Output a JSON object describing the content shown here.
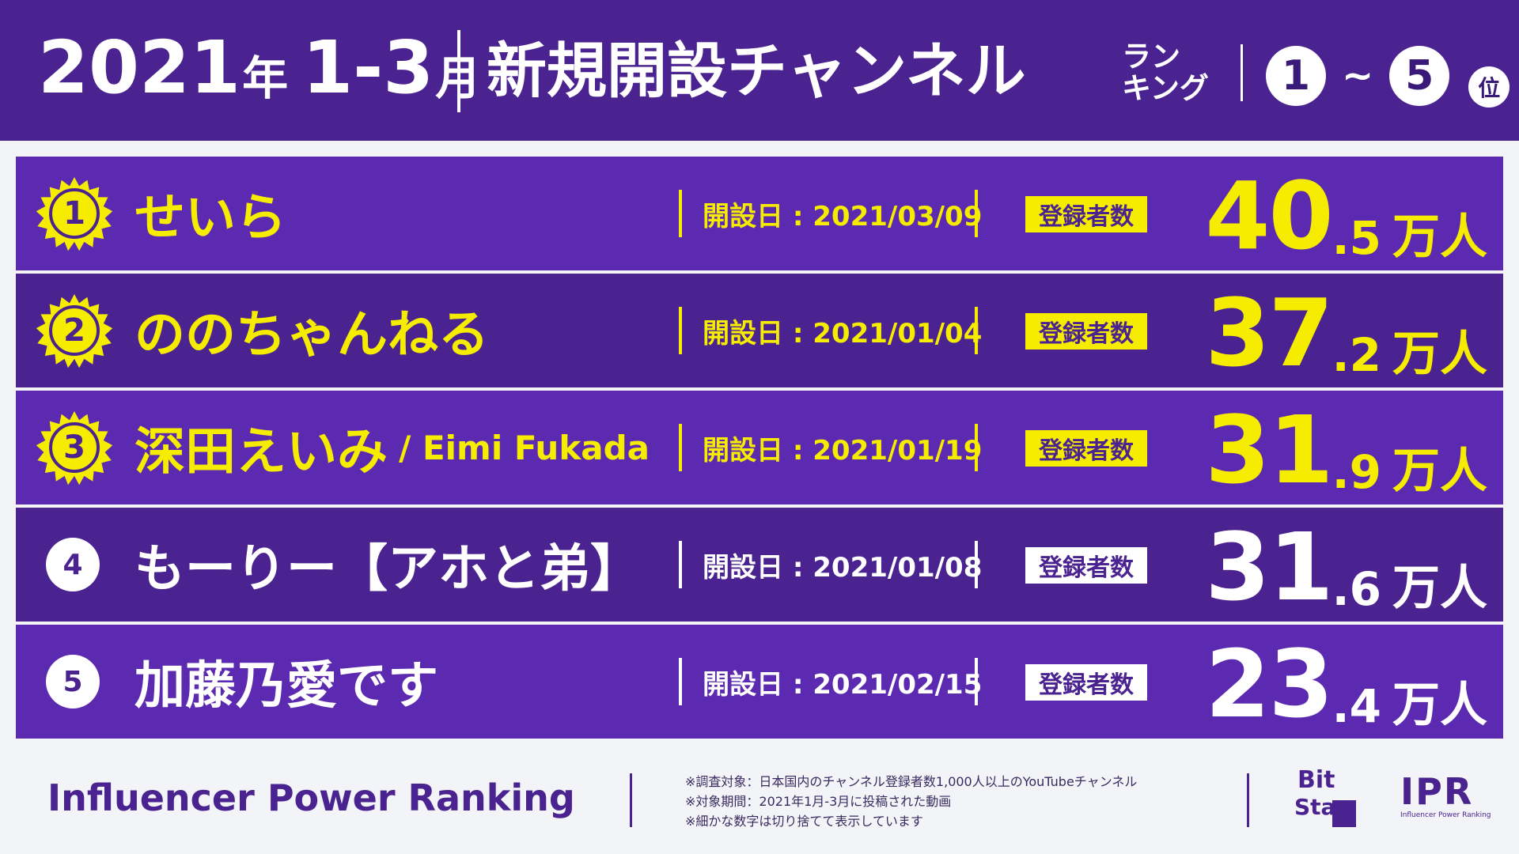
{
  "header": {
    "year": "2021",
    "year_suffix": "年",
    "months": "1-3",
    "month_suffix": "月",
    "title": "新規開設チャンネル",
    "subtitle_line1": "ラン",
    "subtitle_line2": "キング",
    "range_start": "1",
    "range_tilde": "~",
    "range_end": "5",
    "range_suffix": "位"
  },
  "rows": [
    {
      "rank": "1",
      "name": "せいら",
      "name_en": "",
      "date": "開設日 : 2021/03/09",
      "subs_label": "登録者数",
      "subs_int": "40",
      "subs_dec": ".5",
      "unit": "万人"
    },
    {
      "rank": "2",
      "name": "ののちゃんねる",
      "name_en": "",
      "date": "開設日 : 2021/01/04",
      "subs_label": "登録者数",
      "subs_int": "37",
      "subs_dec": ".2",
      "unit": "万人"
    },
    {
      "rank": "3",
      "name": "深田えいみ",
      "name_en": "/ Eimi Fukada",
      "date": "開設日 : 2021/01/19",
      "subs_label": "登録者数",
      "subs_int": "31",
      "subs_dec": ".9",
      "unit": "万人"
    },
    {
      "rank": "4",
      "name": "もーりー【アホと弟】",
      "name_en": "",
      "date": "開設日 : 2021/01/08",
      "subs_label": "登録者数",
      "subs_int": "31",
      "subs_dec": ".6",
      "unit": "万人"
    },
    {
      "rank": "5",
      "name": "加藤乃愛です",
      "name_en": "",
      "date": "開設日 : 2021/02/15",
      "subs_label": "登録者数",
      "subs_int": "23",
      "subs_dec": ".4",
      "unit": "万人"
    }
  ],
  "footer": {
    "brand": "Influencer Power Ranking",
    "note1": "※調査対象：日本国内のチャンネル登録者数1,000人以上のYouTubeチャンネル",
    "note2": "※対象期間：2021年1月-3月に投稿された動画",
    "note3": "※細かな数字は切り捨てて表示しています",
    "logo_bitstar_line1": "Bit",
    "logo_bitstar_line2": "Star",
    "logo_ipr": "IPR",
    "logo_ipr_sub": "Influencer Power Ranking"
  },
  "colors": {
    "purple_dark": "#4a2390",
    "purple_light": "#5c2ab0",
    "yellow": "#f5ec00",
    "white": "#ffffff",
    "background": "#f2f4f7"
  }
}
